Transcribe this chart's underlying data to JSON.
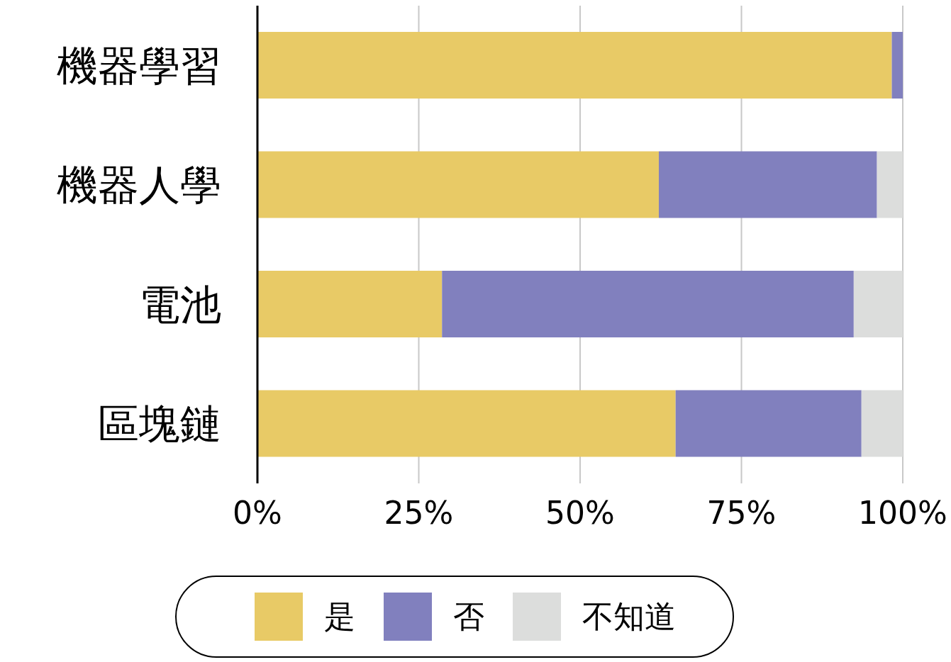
{
  "chart_data": {
    "type": "bar",
    "orientation": "horizontal",
    "stacked": true,
    "categories": [
      "機器學習",
      "機器人學",
      "電池",
      "區塊鏈"
    ],
    "series": [
      {
        "name": "是",
        "color": "#e8ca66",
        "values": [
          98.3,
          62.2,
          28.6,
          64.8
        ]
      },
      {
        "name": "否",
        "color": "#8180be",
        "values": [
          1.7,
          33.8,
          63.8,
          28.8
        ]
      },
      {
        "name": "不知道",
        "color": "#dcdddc",
        "values": [
          0,
          4.0,
          7.6,
          6.4
        ]
      }
    ],
    "xlim": [
      0,
      100
    ],
    "xticks": [
      {
        "value": 0,
        "label": "0%"
      },
      {
        "value": 25,
        "label": "25%"
      },
      {
        "value": 50,
        "label": "50%"
      },
      {
        "value": 75,
        "label": "75%"
      },
      {
        "value": 100,
        "label": "100%"
      }
    ],
    "grid": "x",
    "legend": "bottom"
  }
}
